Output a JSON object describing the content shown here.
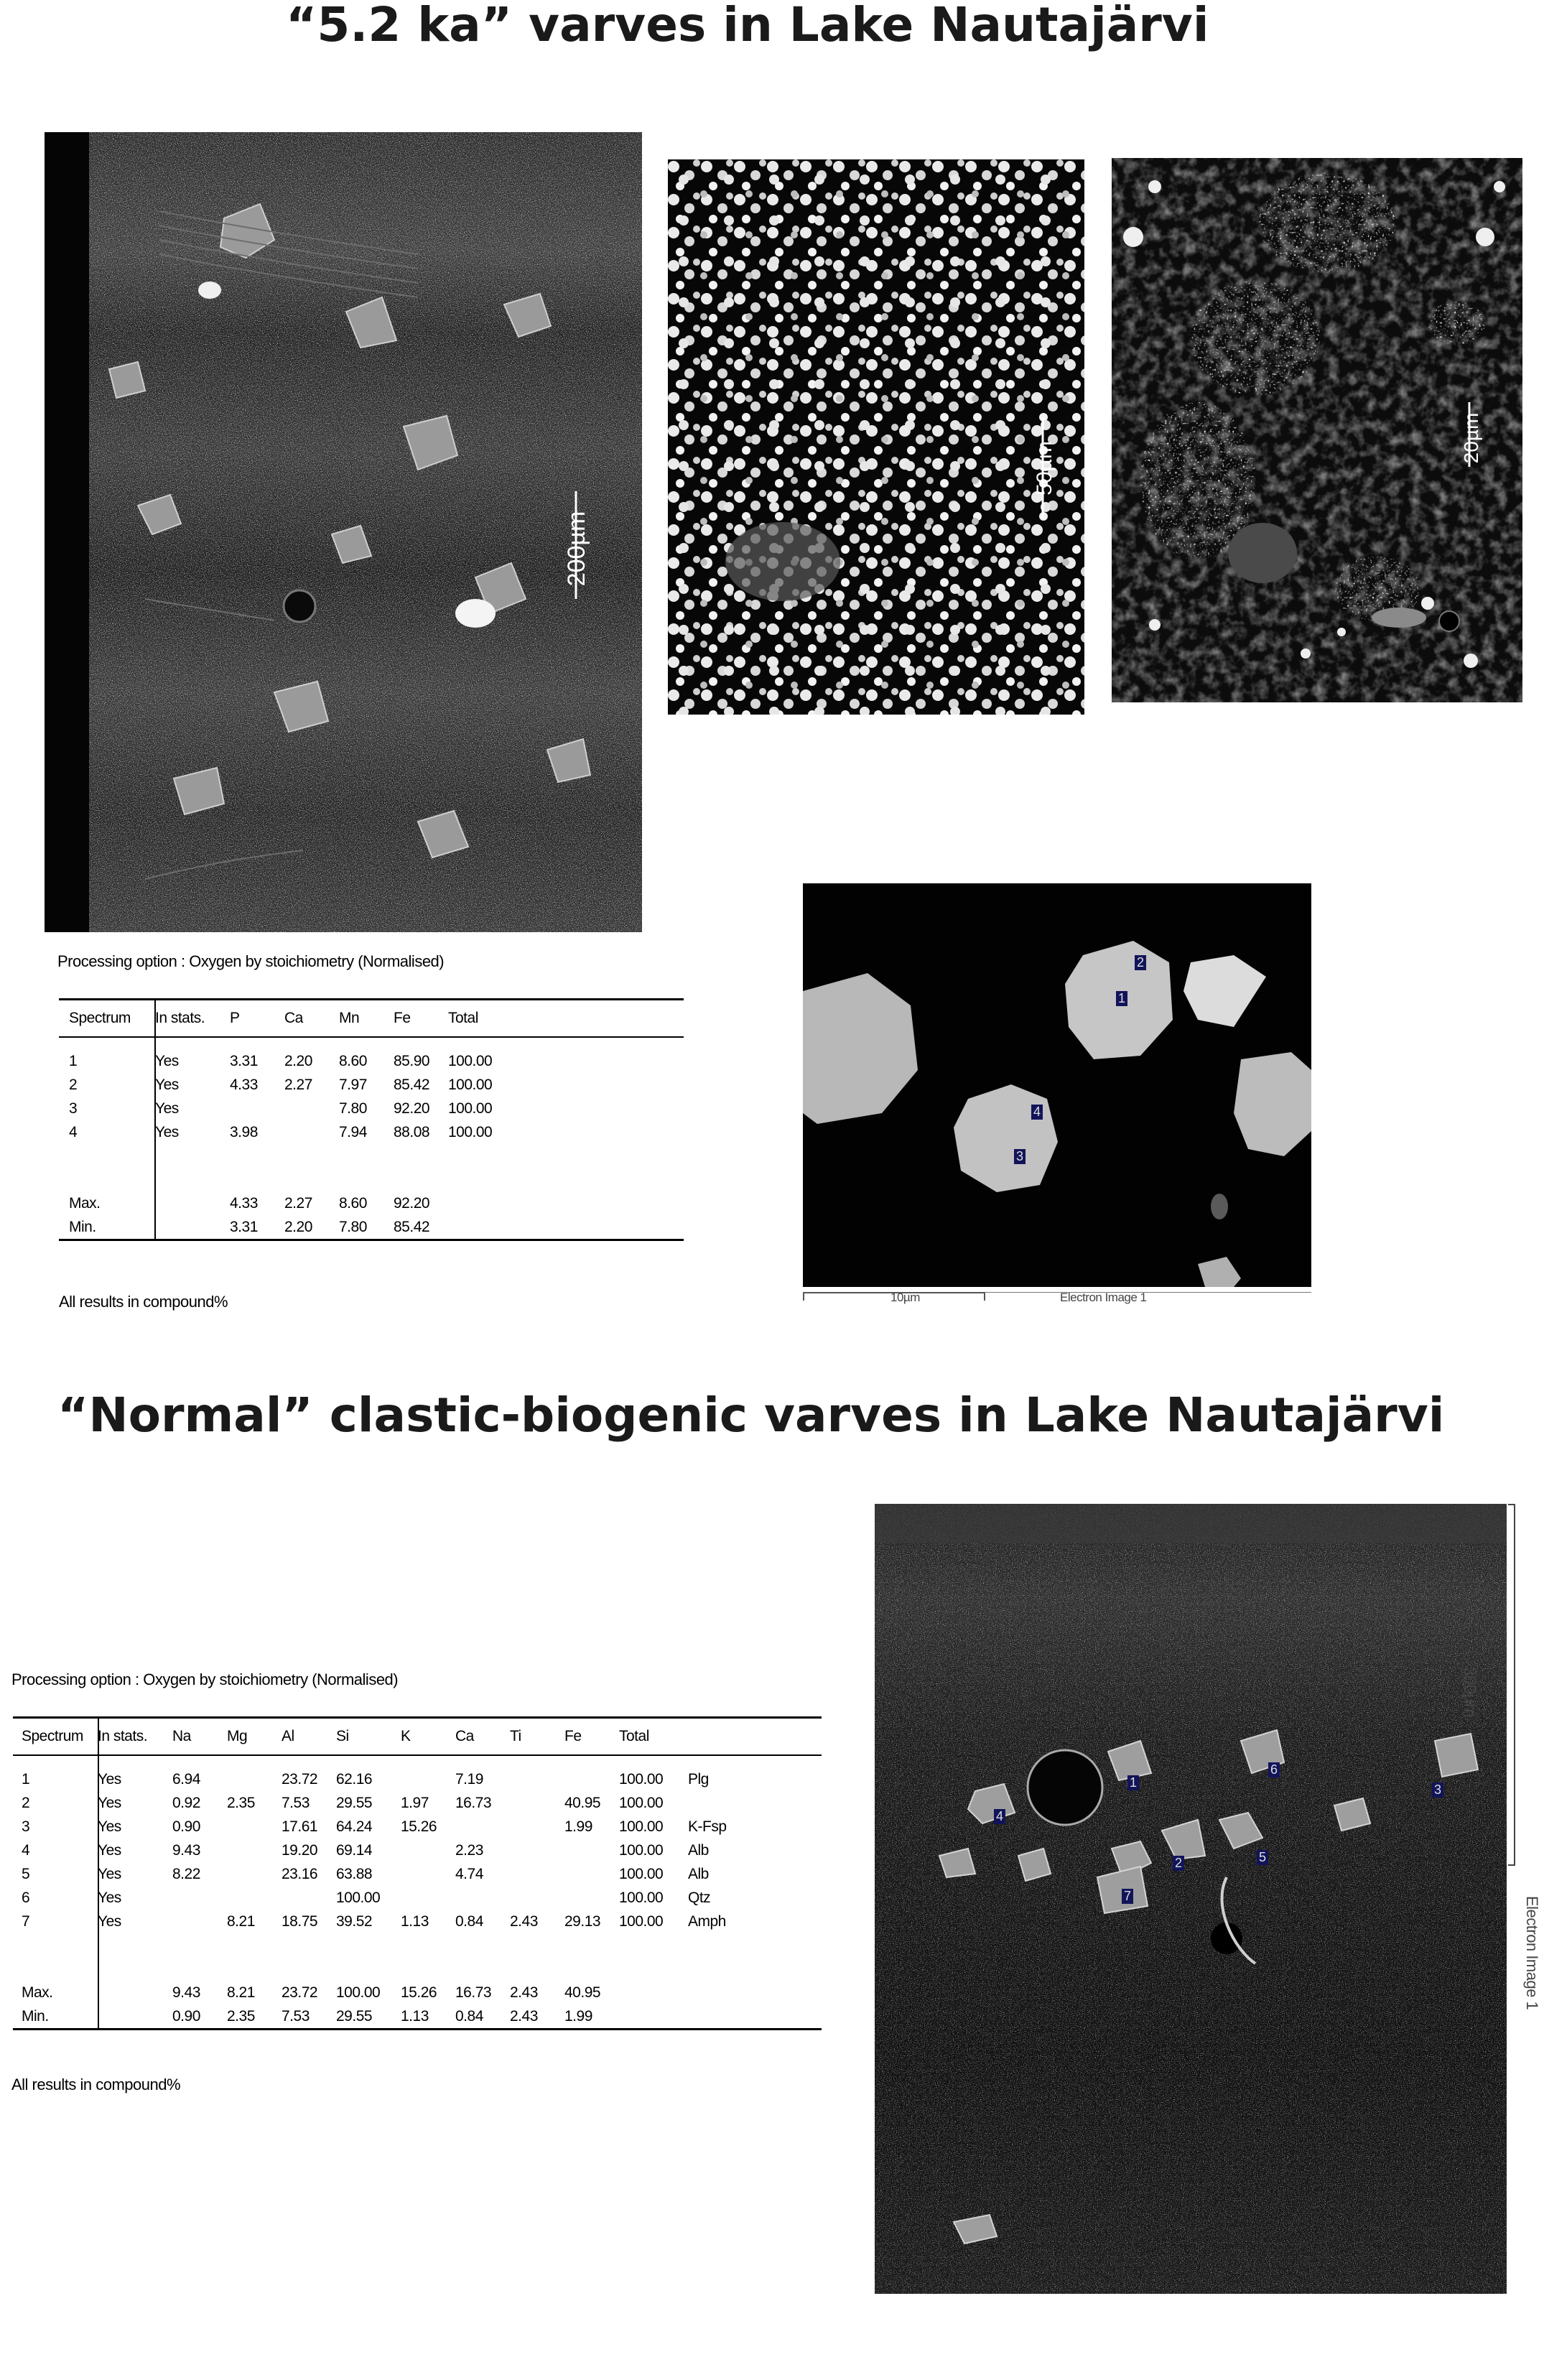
{
  "titles": {
    "top": "“5.2 ka” varves in Lake Nautajärvi",
    "bottom": "“Normal” clastic-biogenic varves in Lake Nautajärvi"
  },
  "images": {
    "top_left_scale": "200µm",
    "top_middle_scale": "50µm",
    "top_right_scale": "20µm",
    "detail_scale": "10µm",
    "detail_caption": "Electron Image 1",
    "detail_spots": [
      "1",
      "2",
      "3",
      "4"
    ],
    "bottom_scale": "300µm",
    "bottom_caption": "Electron Image 1",
    "bottom_spots": [
      "1",
      "2",
      "3",
      "4",
      "5",
      "6",
      "7"
    ]
  },
  "table1": {
    "option": "Processing option : Oxygen by stoichiometry (Normalised)",
    "headers": [
      "Spectrum",
      "In stats.",
      "P",
      "Ca",
      "Mn",
      "Fe",
      "Total"
    ],
    "rows": [
      [
        "1",
        "Yes",
        "3.31",
        "2.20",
        "8.60",
        "85.90",
        "100.00"
      ],
      [
        "2",
        "Yes",
        "4.33",
        "2.27",
        "7.97",
        "85.42",
        "100.00"
      ],
      [
        "3",
        "Yes",
        "",
        "",
        "7.80",
        "92.20",
        "100.00"
      ],
      [
        "4",
        "Yes",
        "3.98",
        "",
        "7.94",
        "88.08",
        "100.00"
      ]
    ],
    "max": [
      "Max.",
      "",
      "4.33",
      "2.27",
      "8.60",
      "92.20",
      ""
    ],
    "min": [
      "Min.",
      "",
      "3.31",
      "2.20",
      "7.80",
      "85.42",
      ""
    ],
    "note": "All results in compound%"
  },
  "table2": {
    "option": "Processing option : Oxygen by stoichiometry (Normalised)",
    "headers": [
      "Spectrum",
      "In stats.",
      "Na",
      "Mg",
      "Al",
      "Si",
      "K",
      "Ca",
      "Ti",
      "Fe",
      "Total",
      ""
    ],
    "rows": [
      [
        "1",
        "Yes",
        "6.94",
        "",
        "23.72",
        "62.16",
        "",
        "7.19",
        "",
        "",
        "100.00",
        "Plg"
      ],
      [
        "2",
        "Yes",
        "0.92",
        "2.35",
        "7.53",
        "29.55",
        "1.97",
        "16.73",
        "",
        "40.95",
        "100.00",
        ""
      ],
      [
        "3",
        "Yes",
        "0.90",
        "",
        "17.61",
        "64.24",
        "15.26",
        "",
        "",
        "1.99",
        "100.00",
        "K-Fsp"
      ],
      [
        "4",
        "Yes",
        "9.43",
        "",
        "19.20",
        "69.14",
        "",
        "2.23",
        "",
        "",
        "100.00",
        "Alb"
      ],
      [
        "5",
        "Yes",
        "8.22",
        "",
        "23.16",
        "63.88",
        "",
        "4.74",
        "",
        "",
        "100.00",
        "Alb"
      ],
      [
        "6",
        "Yes",
        "",
        "",
        "",
        "100.00",
        "",
        "",
        "",
        "",
        "100.00",
        "Qtz"
      ],
      [
        "7",
        "Yes",
        "",
        "8.21",
        "18.75",
        "39.52",
        "1.13",
        "0.84",
        "2.43",
        "29.13",
        "100.00",
        "Amph"
      ]
    ],
    "max": [
      "Max.",
      "",
      "9.43",
      "8.21",
      "23.72",
      "100.00",
      "15.26",
      "16.73",
      "2.43",
      "40.95",
      "",
      ""
    ],
    "min": [
      "Min.",
      "",
      "0.90",
      "2.35",
      "7.53",
      "29.55",
      "1.13",
      "0.84",
      "2.43",
      "1.99",
      "",
      ""
    ],
    "note": "All results in compound%"
  }
}
